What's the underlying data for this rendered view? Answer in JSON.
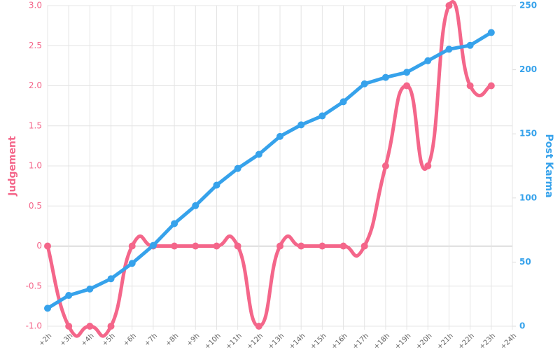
{
  "chart_data": {
    "type": "line",
    "categories": [
      "+2h",
      "+3h",
      "+4h",
      "+5h",
      "+6h",
      "+7h",
      "+8h",
      "+9h",
      "+10h",
      "+11h",
      "+12h",
      "+13h",
      "+14h",
      "+15h",
      "+16h",
      "+17h",
      "+18h",
      "+19h",
      "+20h",
      "+21h",
      "+22h",
      "+23h",
      "+24h"
    ],
    "ylabel": "Judgement",
    "y2label": "Post Karma",
    "ylim": [
      -1,
      3
    ],
    "yticks": [
      {
        "value": -1,
        "label": "-1.0"
      },
      -0.5,
      0,
      0.5,
      {
        "value": 1,
        "label": "1.0"
      },
      1.5,
      {
        "value": 2,
        "label": "2.0"
      },
      2.5,
      {
        "value": 3,
        "label": "3.0"
      }
    ],
    "y2lim": [
      0,
      250
    ],
    "y2ticks": [
      0,
      50,
      100,
      150,
      200,
      250
    ],
    "grid": true,
    "series": [
      {
        "name": "Judgement",
        "color": "#f4668a",
        "smooth": true,
        "values": [
          0,
          -1,
          -1,
          -1,
          0,
          0,
          0,
          0,
          0,
          0,
          -1,
          0,
          0,
          0,
          0,
          0,
          1,
          2,
          1,
          3,
          2,
          2,
          null
        ]
      },
      {
        "name": "Post Karma",
        "color": "#36a2eb",
        "axis": "y2",
        "smooth": false,
        "values": [
          14,
          24,
          29,
          37,
          49,
          63,
          80,
          94,
          110,
          123,
          134,
          148,
          157,
          164,
          175,
          189,
          194,
          198,
          207,
          216,
          219,
          229,
          null
        ]
      }
    ]
  }
}
